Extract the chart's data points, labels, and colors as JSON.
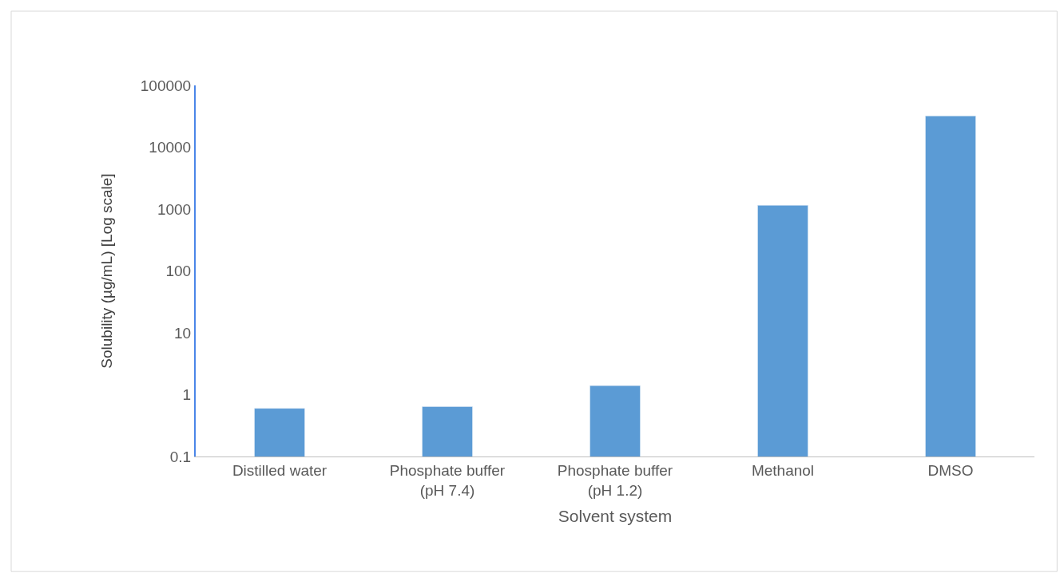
{
  "chart_data": {
    "type": "bar",
    "xlabel": "Solvent system",
    "ylabel": "Solubility (µg/mL) [Log scale]",
    "categories": [
      "Distilled water",
      "Phosphate buffer (pH 7.4)",
      "Phosphate buffer (pH 1.2)",
      "Methanol",
      "DMSO"
    ],
    "values": [
      0.6,
      0.64,
      1.4,
      1150,
      32000
    ],
    "color": "#5b9bd5",
    "log": "y",
    "ylim": [
      0.1,
      100000
    ],
    "yticks": [
      0.1,
      1,
      10,
      100,
      1000,
      10000,
      100000
    ]
  }
}
